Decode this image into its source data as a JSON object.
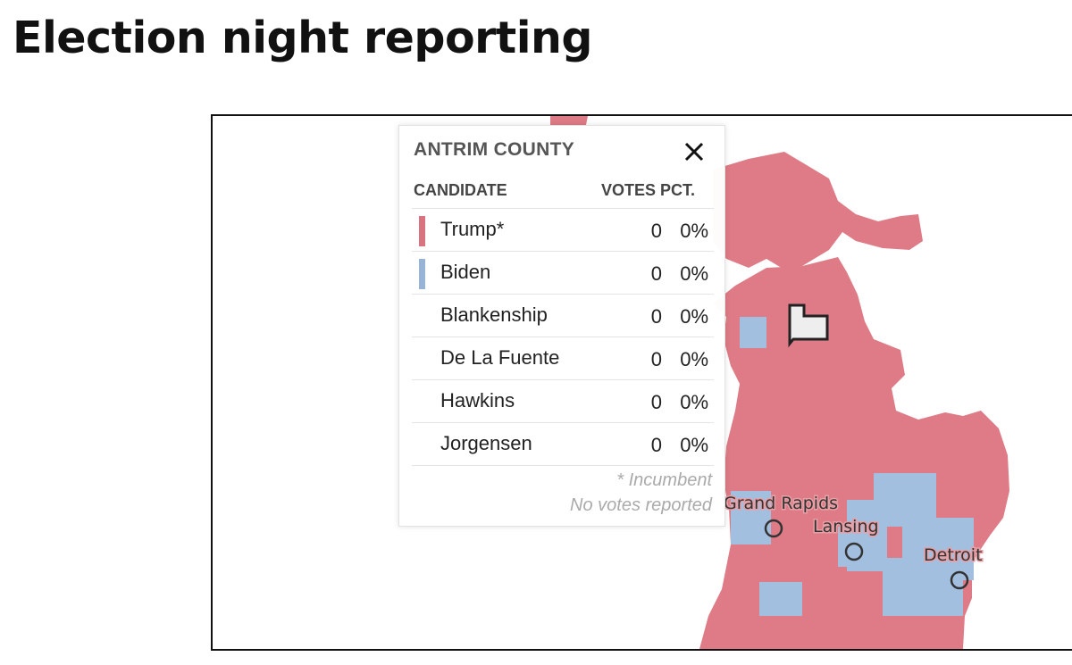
{
  "slide": {
    "title": "Election night reporting"
  },
  "popup": {
    "county": "ANTRIM COUNTY",
    "headers": {
      "candidate": "CANDIDATE",
      "votes": "VOTES",
      "pct": "PCT."
    },
    "candidates": [
      {
        "name": "Trump*",
        "votes": "0",
        "pct": "0%",
        "color": "#d9737f"
      },
      {
        "name": "Biden",
        "votes": "0",
        "pct": "0%",
        "color": "#97b4d6"
      },
      {
        "name": "Blankenship",
        "votes": "0",
        "pct": "0%",
        "color": ""
      },
      {
        "name": "De La Fuente",
        "votes": "0",
        "pct": "0%",
        "color": ""
      },
      {
        "name": "Hawkins",
        "votes": "0",
        "pct": "0%",
        "color": ""
      },
      {
        "name": "Jorgensen",
        "votes": "0",
        "pct": "0%",
        "color": ""
      }
    ],
    "footnote_incumbent": "* Incumbent",
    "footnote_status": "No votes reported",
    "close_icon": "close-icon"
  },
  "map": {
    "cities": [
      "Grand Rapids",
      "Lansing",
      "Detroit"
    ],
    "colors": {
      "republican": "#de7b86",
      "democrat": "#a3bfdf",
      "selected": "#eeeeee"
    }
  }
}
